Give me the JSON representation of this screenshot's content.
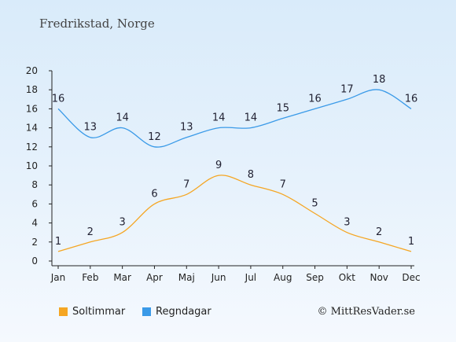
{
  "header": {
    "title": "Fredrikstad, Norge"
  },
  "footer": {
    "credit": "© MittResVader.se"
  },
  "colors": {
    "sun": "#f5a623",
    "rain": "#3a9ae8"
  },
  "chart_data": {
    "type": "line",
    "categories": [
      "Jan",
      "Feb",
      "Mar",
      "Apr",
      "Maj",
      "Jun",
      "Jul",
      "Aug",
      "Sep",
      "Okt",
      "Nov",
      "Dec"
    ],
    "ylim": [
      0,
      20
    ],
    "yticks": [
      0,
      2,
      4,
      6,
      8,
      10,
      12,
      14,
      16,
      18,
      20
    ],
    "grid": false,
    "legend": "bottom-left",
    "series": [
      {
        "name": "Soltimmar",
        "color": "#f5a623",
        "values": [
          1,
          2,
          3,
          6,
          7,
          9,
          8,
          7,
          5,
          3,
          2,
          1
        ]
      },
      {
        "name": "Regndagar",
        "color": "#3a9ae8",
        "values": [
          16,
          13,
          14,
          12,
          13,
          14,
          14,
          15,
          16,
          17,
          18,
          16
        ]
      }
    ]
  }
}
